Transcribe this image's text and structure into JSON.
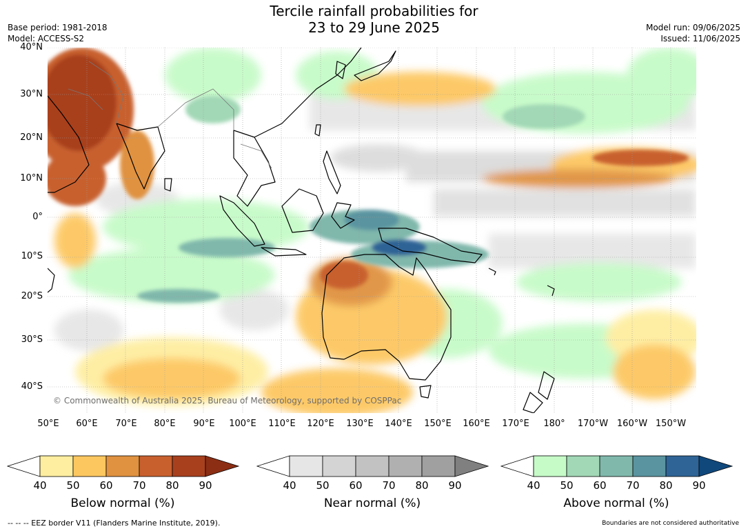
{
  "title_line1": "Tercile rainfall probabilities for",
  "title_line2": "23 to 29 June 2025",
  "base_period": "Base period: 1981-2018",
  "model": "Model: ACCESS-S2",
  "model_run": "Model run: 09/06/2025",
  "issued": "Issued: 11/06/2025",
  "lat_labels": [
    "40°N",
    "30°N",
    "20°N",
    "10°N",
    "0°",
    "10°S",
    "20°S",
    "30°S",
    "40°S"
  ],
  "lon_labels": [
    "50°E",
    "60°E",
    "70°E",
    "80°E",
    "90°E",
    "100°E",
    "110°E",
    "120°E",
    "130°E",
    "140°E",
    "150°E",
    "160°E",
    "170°E",
    "180°",
    "170°W",
    "160°W",
    "150°W"
  ],
  "copyright": "© Commonwealth of Australia 2025, Bureau of Meteorology, supported by COSPPac",
  "colorbars": [
    {
      "title": "Below normal (%)",
      "ticks": [
        "40",
        "50",
        "60",
        "70",
        "80",
        "90"
      ],
      "colors": [
        "#ffffff",
        "#feeea0",
        "#fdc760",
        "#e09240",
        "#c8602e",
        "#a8401e",
        "#8c2e14"
      ]
    },
    {
      "title": "Near normal (%)",
      "ticks": [
        "40",
        "50",
        "60",
        "70",
        "80",
        "90"
      ],
      "colors": [
        "#ffffff",
        "#e6e6e6",
        "#d4d4d4",
        "#c2c2c2",
        "#b0b0b0",
        "#a0a0a0",
        "#808080"
      ]
    },
    {
      "title": "Above normal (%)",
      "ticks": [
        "40",
        "50",
        "60",
        "70",
        "80",
        "90"
      ],
      "colors": [
        "#ffffff",
        "#c6fbc8",
        "#a2d8b6",
        "#80b8ac",
        "#5a94a0",
        "#2f6496",
        "#10487c"
      ]
    }
  ],
  "eez_note": "--  --  -- EEZ border V11 (Flanders Marine Institute, 2019).",
  "authoritative_note": "Boundaries are not considered authoritative"
}
